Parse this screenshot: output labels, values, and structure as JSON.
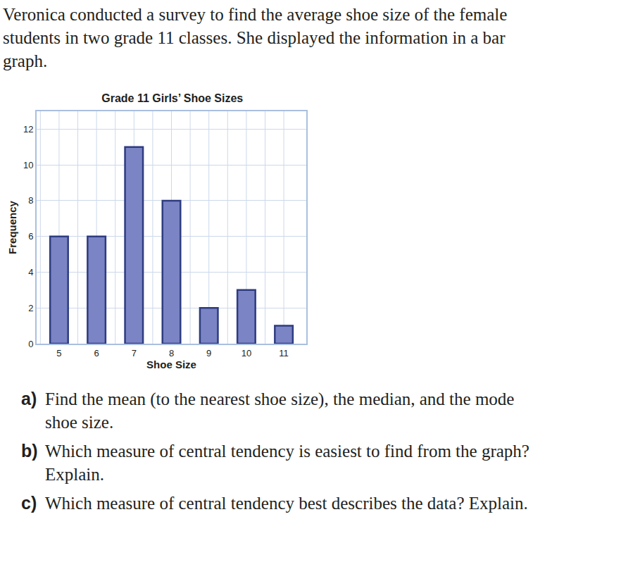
{
  "intro": "Veronica conducted a survey to find the average shoe size of the female students in two grade 11 classes. She displayed the information in a bar graph.",
  "chart_data": {
    "type": "bar",
    "title": "Grade 11 Girls’ Shoe Sizes",
    "x_label": "Shoe Size",
    "y_label": "Frequency",
    "categories": [
      "5",
      "6",
      "7",
      "8",
      "9",
      "10",
      "11"
    ],
    "values": [
      6,
      6,
      11,
      8,
      2,
      3,
      1
    ],
    "color": "#7b84c4",
    "ylim": [
      0,
      13
    ],
    "yticks": [
      0,
      2,
      4,
      6,
      8,
      10,
      12
    ],
    "grid": true
  },
  "questions": [
    {
      "label": "a)",
      "text": "Find the mean (to the nearest shoe size), the median, and the mode shoe size."
    },
    {
      "label": "b)",
      "text": "Which measure of central tendency is easiest to find from the graph? Explain."
    },
    {
      "label": "c)",
      "text": "Which measure of central tendency best describes the data? Explain."
    }
  ]
}
